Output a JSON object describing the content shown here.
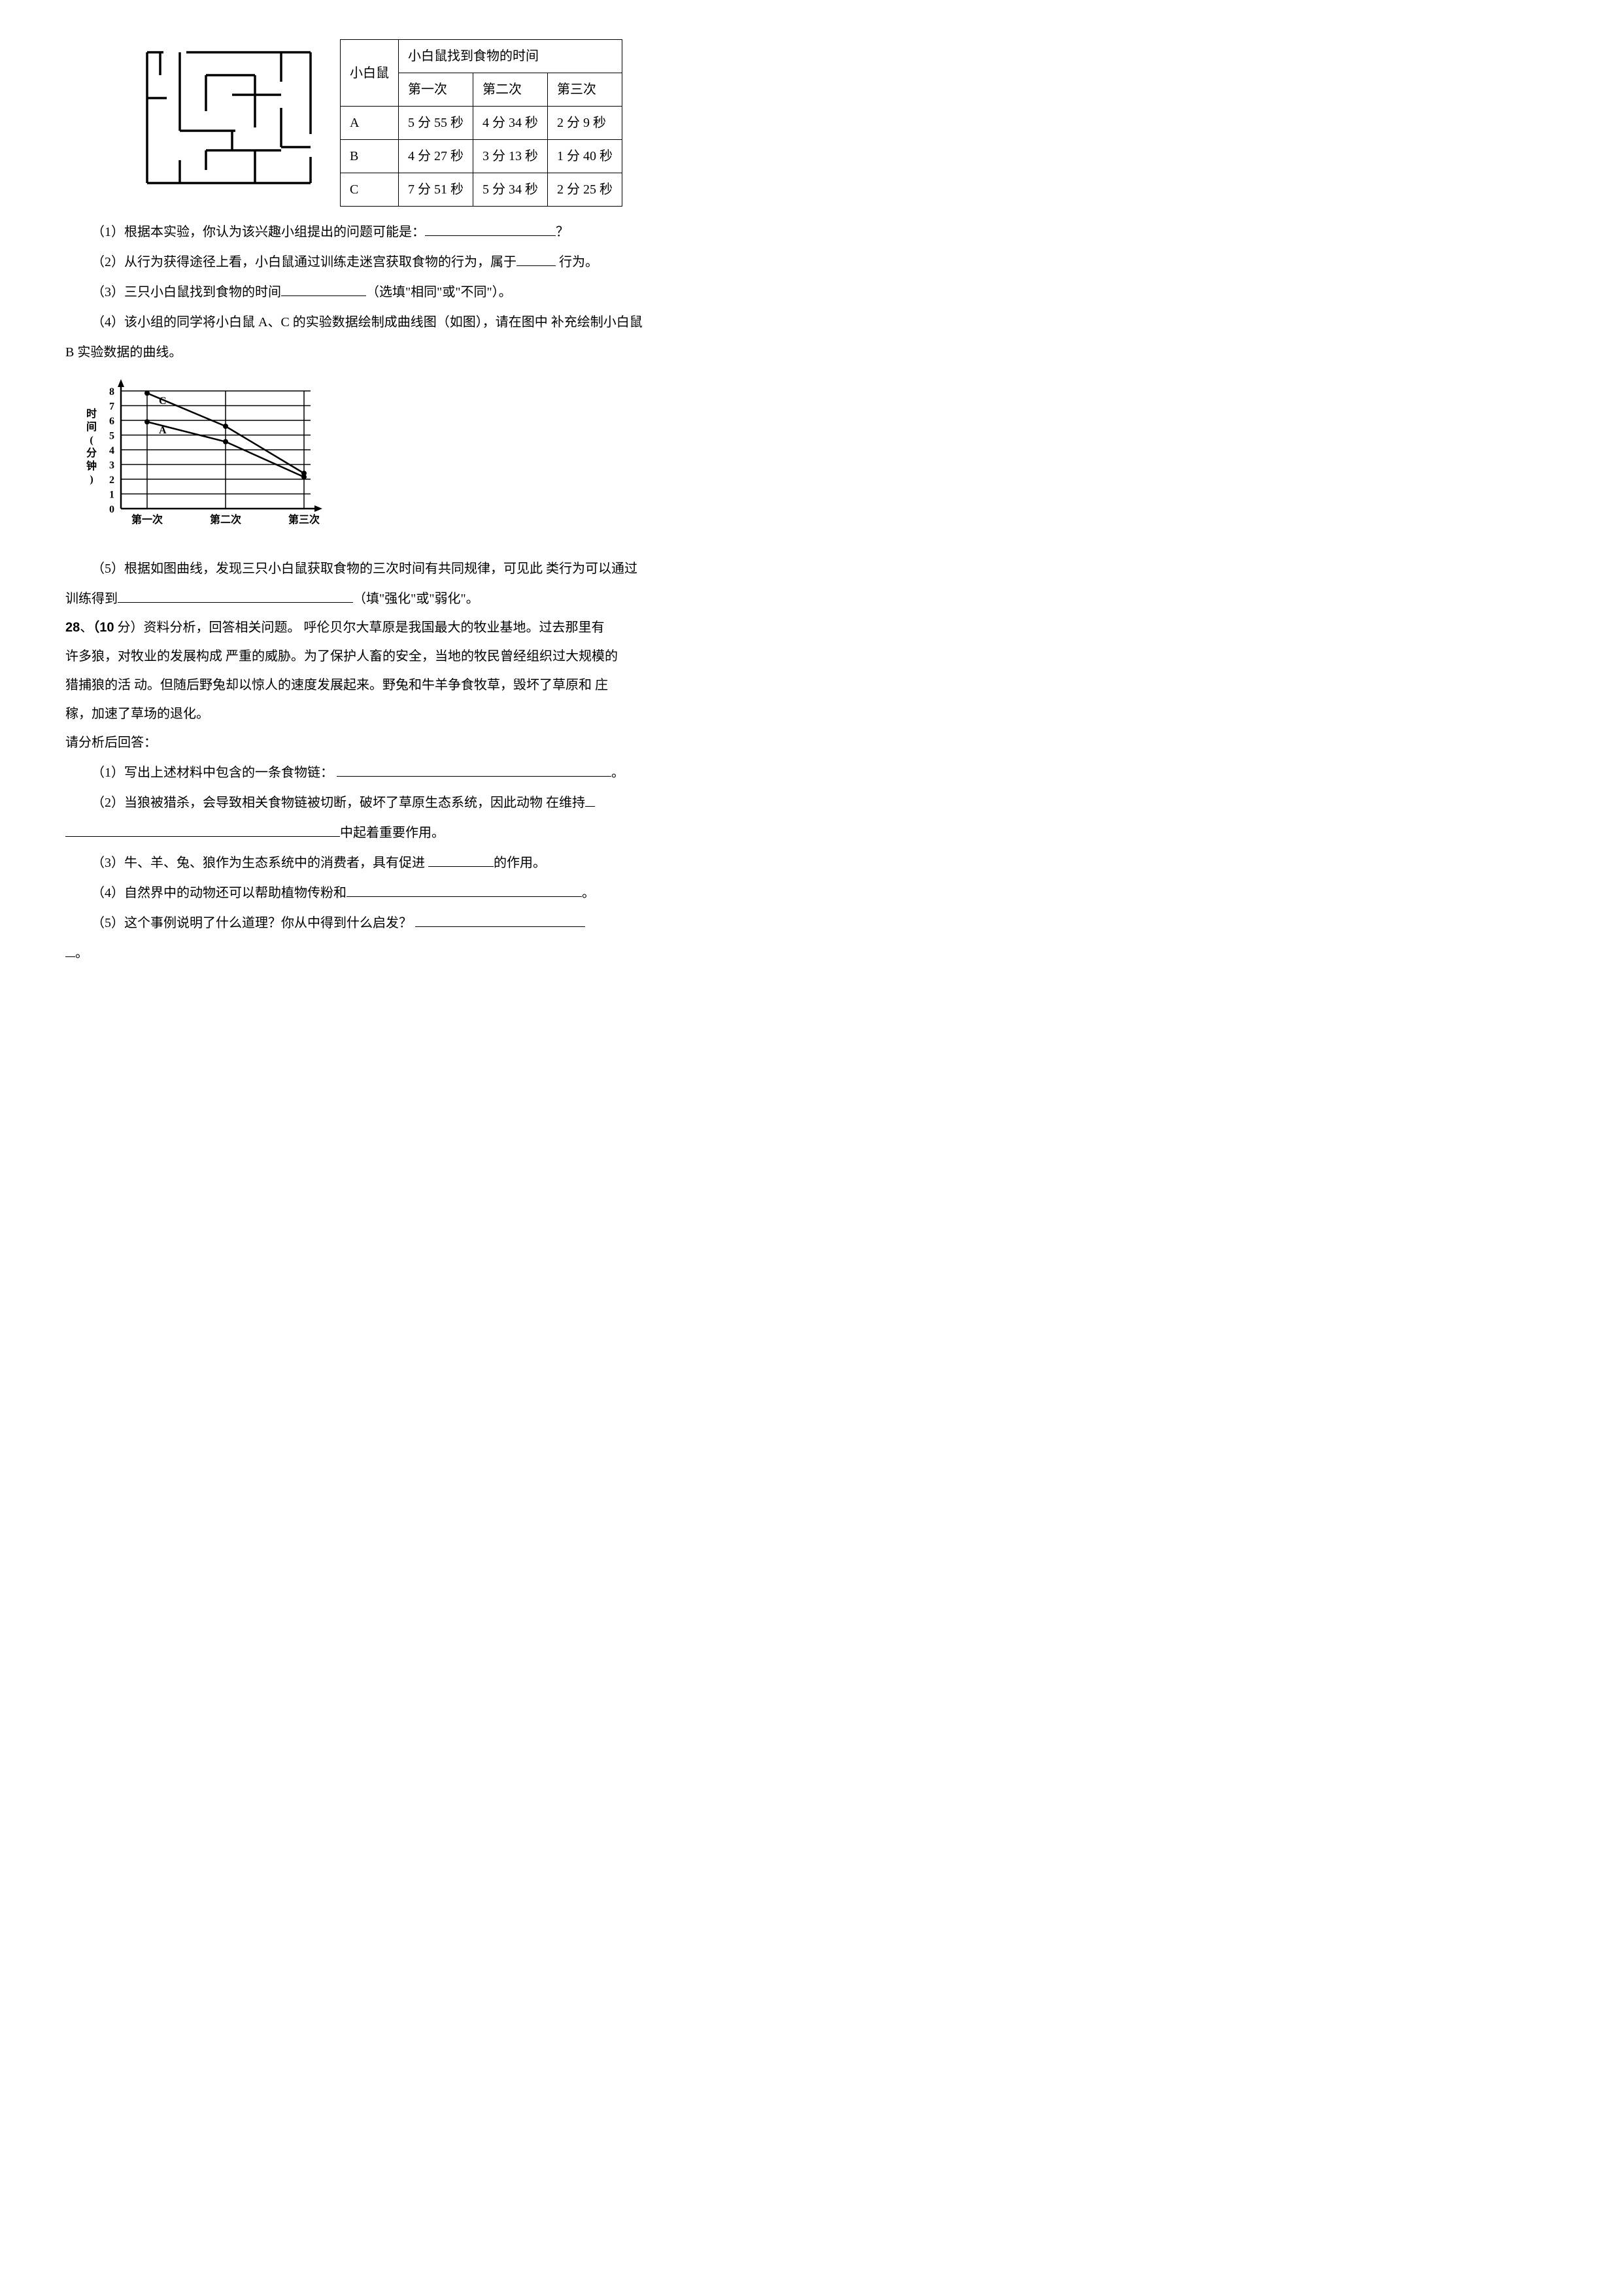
{
  "table": {
    "header_rowspan_label": "小白鼠",
    "header_top": "小白鼠找到食物的时间",
    "cols": [
      "第一次",
      "第二次",
      "第三次"
    ],
    "rows": [
      {
        "label": "A",
        "cells": [
          "5 分 55 秒",
          "4 分 34 秒",
          "2 分 9 秒"
        ]
      },
      {
        "label": "B",
        "cells": [
          "4 分 27 秒",
          "3 分 13 秒",
          "1 分 40 秒"
        ]
      },
      {
        "label": "C",
        "cells": [
          "7 分 51 秒",
          "5 分 34 秒",
          "2 分 25 秒"
        ]
      }
    ]
  },
  "chart": {
    "y_label": "时间(分钟)",
    "y_max": 8,
    "y_ticks": [
      0,
      1,
      2,
      3,
      4,
      5,
      6,
      7,
      8
    ],
    "x_labels": [
      "第一次",
      "第二次",
      "第三次"
    ],
    "series": [
      {
        "name": "C",
        "values": [
          7.85,
          5.6,
          2.4
        ],
        "label_y": 8
      },
      {
        "name": "A",
        "values": [
          5.9,
          4.55,
          2.15
        ],
        "label_y": 6
      }
    ],
    "line_color": "#000000",
    "grid_color": "#000000",
    "bg_color": "#ffffff"
  },
  "q27": {
    "l1_a": "（1）根据本实验，你认为该兴趣小组提出的问题可能是：",
    "l1_b": "？",
    "l2_a": "（2）从行为获得途径上看，小白鼠通过训练走迷宫获取食物的行为，属于",
    "l2_b": " 行为。",
    "l3_a": "（3）三只小白鼠找到食物的时间",
    "l3_b": "（选填\"相同\"或\"不同\"）。",
    "l4_a": "（4）该小组的同学将小白鼠 A、C 的实验数据绘制成曲线图（如图），请在图中 补充绘制小白鼠",
    "l4_b": "B 实验数据的曲线。",
    "l5_a": "（5）根据如图曲线，发现三只小白鼠获取食物的三次时间有共同规律，可见此 类行为可以通过",
    "l5_b": "训练得到",
    "l5_c": "（填\"强化\"或\"弱化\"。"
  },
  "q28": {
    "head_num": "28",
    "head_score": "（10",
    "head_a": " 分）资料分析，回答相关问题。  呼伦贝尔大草原是我国最大的牧业基地。过去那里有",
    "p1": "许多狼，对牧业的发展构成 严重的威胁。为了保护人畜的安全，当地的牧民曾经组织过大规模的",
    "p2": "猎捕狼的活 动。但随后野兔却以惊人的速度发展起来。野兔和牛羊争食牧草，毁坏了草原和 庄",
    "p3": "稼，加速了草场的退化。",
    "p4": "请分析后回答：",
    "l1_a": "（1）写出上述材料中包含的一条食物链：",
    "l1_b": "。",
    "l2_a": "（2）当狼被猎杀，会导致相关食物链被切断，破坏了草原生态系统，因此动物 在维持",
    "l2_b": "中起着重要作用。",
    "l3_a": "（3）牛、羊、兔、狼作为生态系统中的消费者，具有促进 ",
    "l3_b": "的作用。",
    "l4_a": "（4）自然界中的动物还可以帮助植物传粉和",
    "l4_b": "。",
    "l5_a": "（5）这个事例说明了什么道理？你从中得到什么启发？",
    "tail": "。"
  }
}
